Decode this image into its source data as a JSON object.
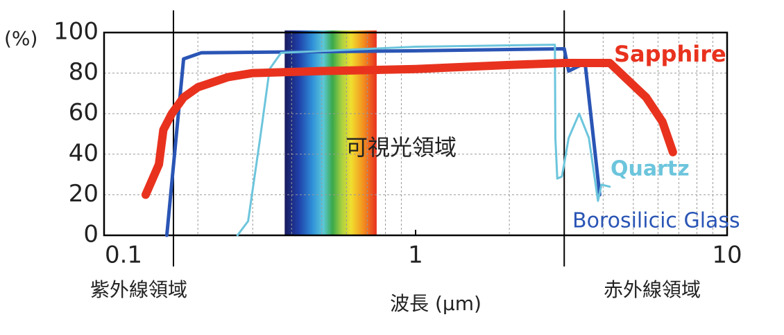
{
  "chart_data": {
    "type": "line",
    "y_unit_label": "(%)",
    "xlabel": "波長 (μm)",
    "xscale": "log",
    "xlim": [
      0.1,
      10
    ],
    "xticks": [
      0.1,
      1,
      10
    ],
    "x_minor_ticks": [
      0.2,
      0.3,
      0.4,
      0.5,
      0.6,
      0.7,
      0.8,
      0.9,
      2,
      3,
      4,
      5,
      6,
      7,
      8,
      9
    ],
    "ylim": [
      0,
      100
    ],
    "yticks": [
      0,
      20,
      40,
      60,
      80,
      100
    ],
    "grid": true,
    "visible_range": [
      0.38,
      0.75
    ],
    "visible_label": "可視光領域",
    "region_boundaries": [
      0.167,
      3
    ],
    "region_labels": [
      "紫外線領域",
      "赤外線領域"
    ],
    "series": [
      {
        "name": "Sapphire",
        "color": "#e8321e",
        "x": [
          0.136,
          0.15,
          0.155,
          0.165,
          0.18,
          0.2,
          0.25,
          0.3,
          0.5,
          1,
          2,
          3,
          4.2,
          5.5,
          6.2,
          6.7
        ],
        "values": [
          20,
          35,
          52,
          60,
          68,
          73,
          78,
          80,
          81,
          82,
          84,
          85,
          85,
          68,
          56,
          41
        ]
      },
      {
        "name": "Quartz",
        "color": "#6cc5dc",
        "x": [
          0.268,
          0.29,
          0.317,
          0.34,
          0.37,
          1,
          2.8,
          2.81,
          2.85,
          2.95,
          3.1,
          3.35,
          3.6,
          3.85,
          3.95,
          4.2
        ],
        "values": [
          0,
          7,
          48,
          82,
          90,
          93,
          94,
          48,
          28,
          29,
          48,
          60,
          48,
          17,
          25,
          24
        ]
      },
      {
        "name": "Borosilicic Glass",
        "color": "#2a55b5",
        "x": [
          0.159,
          0.18,
          0.205,
          1,
          3,
          3.1,
          3.5,
          3.9
        ],
        "values": [
          0,
          87,
          90,
          91,
          92,
          81,
          85,
          20
        ]
      }
    ]
  }
}
